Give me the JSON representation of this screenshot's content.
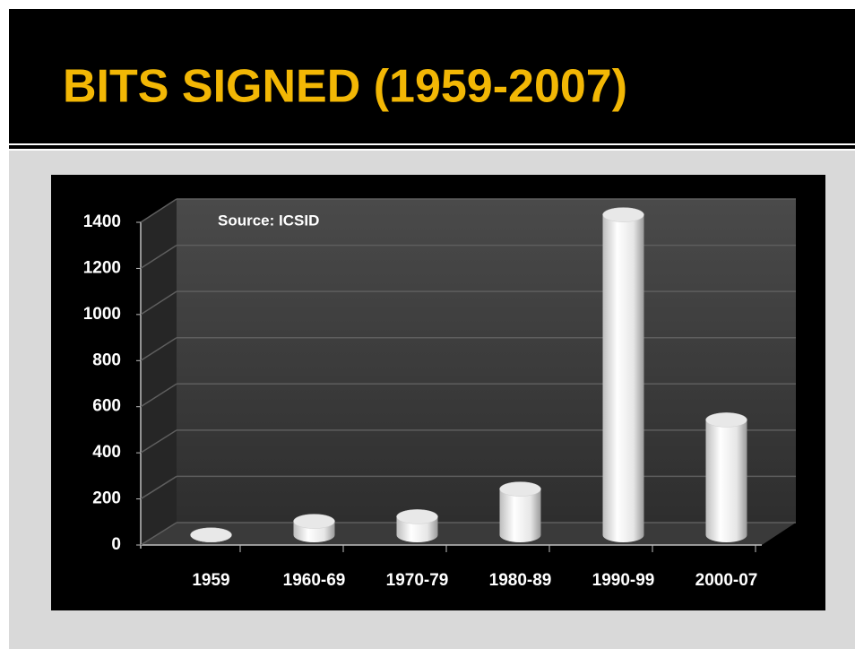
{
  "chart_data": {
    "type": "bar",
    "title": "BITS SIGNED (1959-2007)",
    "annotation": "Source:  ICSID",
    "categories": [
      "1959",
      "1960-69",
      "1970-79",
      "1980-89",
      "1990-99",
      "2000-07"
    ],
    "values": [
      1,
      60,
      80,
      200,
      1390,
      500
    ],
    "color": "#ffffff",
    "ylim": [
      0,
      1400
    ],
    "yticks": [
      0,
      200,
      400,
      600,
      800,
      1000,
      1200,
      1400
    ],
    "grid": true
  }
}
